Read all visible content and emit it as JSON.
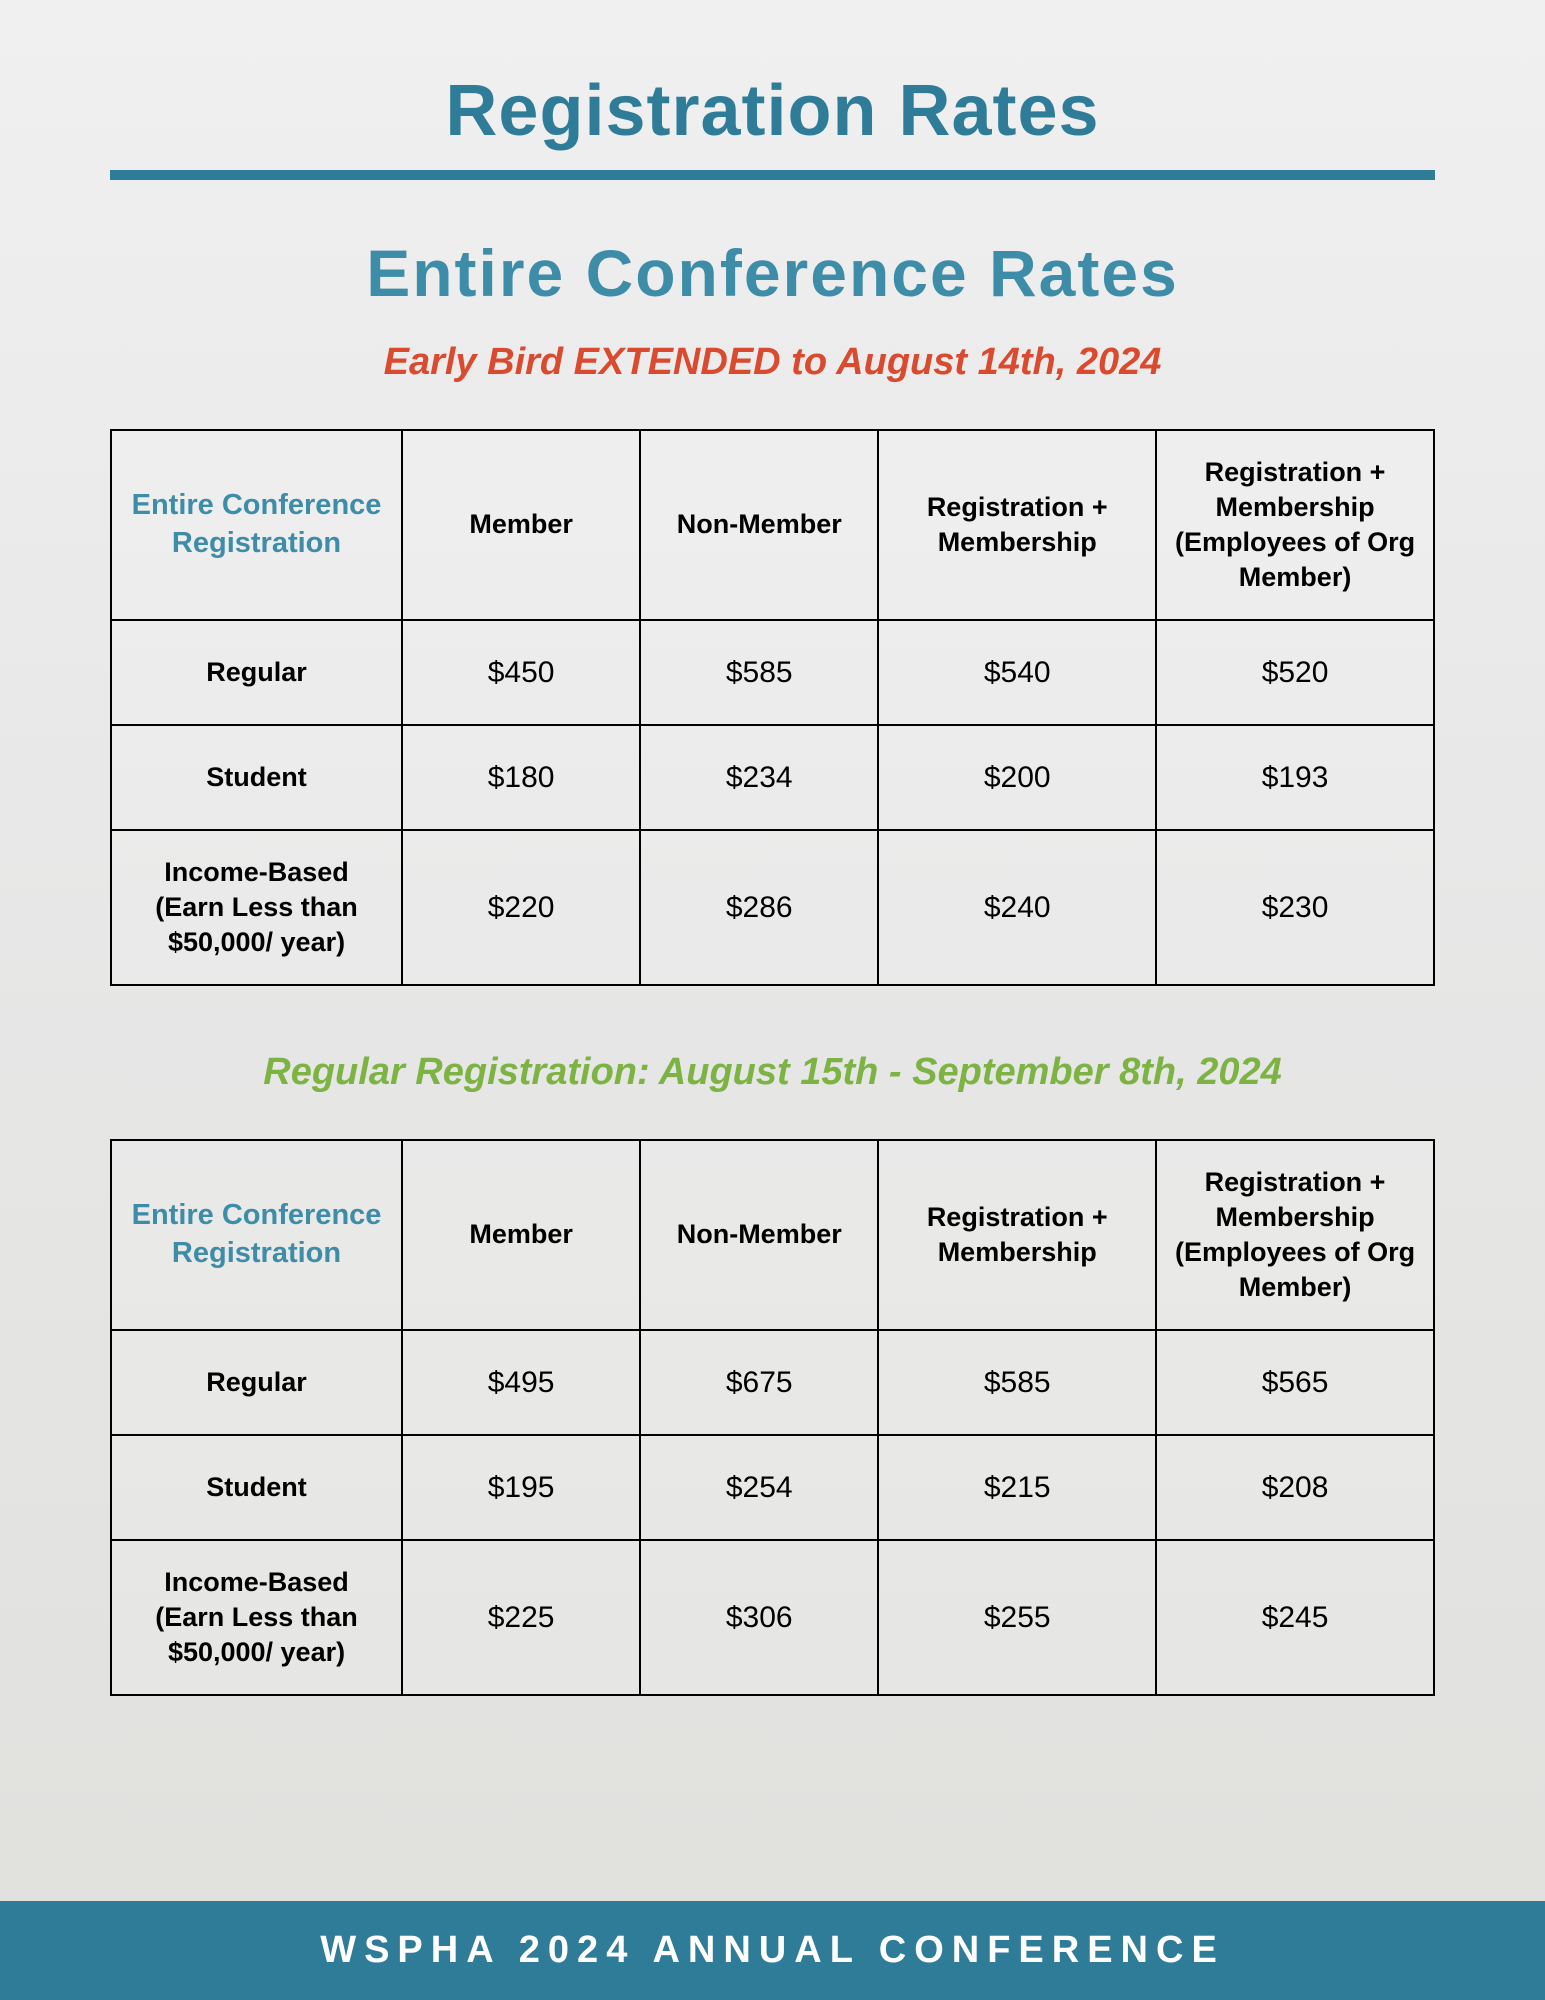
{
  "page_title": "Registration Rates",
  "section_title": "Entire Conference Rates",
  "early_bird": {
    "subtitle": "Early Bird EXTENDED to August 14th, 2024",
    "header_label": "Entire Conference Registration",
    "columns": [
      "Member",
      "Non-Member",
      "Registration + Membership",
      "Registration + Membership (Employees of Org Member)"
    ],
    "rows": [
      {
        "label": "Regular",
        "values": [
          "$450",
          "$585",
          "$540",
          "$520"
        ]
      },
      {
        "label": "Student",
        "values": [
          "$180",
          "$234",
          "$200",
          "$193"
        ]
      },
      {
        "label": "Income-Based (Earn Less than $50,000/ year)",
        "values": [
          "$220",
          "$286",
          "$240",
          "$230"
        ]
      }
    ]
  },
  "regular": {
    "subtitle": "Regular Registration: August 15th - September 8th, 2024",
    "header_label": "Entire Conference Registration",
    "columns": [
      "Member",
      "Non-Member",
      "Registration + Membership",
      "Registration + Membership (Employees of Org Member)"
    ],
    "rows": [
      {
        "label": "Regular",
        "values": [
          "$495",
          "$675",
          "$585",
          "$565"
        ]
      },
      {
        "label": "Student",
        "values": [
          "$195",
          "$254",
          "$215",
          "$208"
        ]
      },
      {
        "label": "Income-Based (Earn Less than $50,000/ year)",
        "values": [
          "$225",
          "$306",
          "$255",
          "$245"
        ]
      }
    ]
  },
  "footer": "WSPHA 2024 ANNUAL CONFERENCE",
  "colors": {
    "accent": "#2f7c99",
    "heading": "#3d8ca8",
    "red": "#d94a2f",
    "green": "#7cb342",
    "text": "#000000",
    "bg": "#f0f0f0"
  }
}
